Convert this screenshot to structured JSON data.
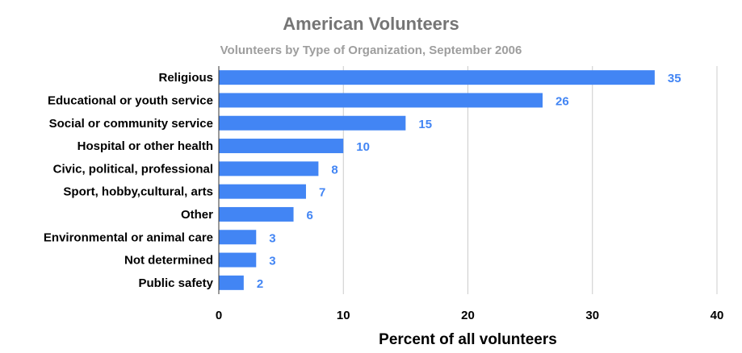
{
  "title": "American Volunteers",
  "subtitle": "Volunteers by Type of Organization, September 2006",
  "colors": {
    "bar": "#4285f4",
    "value_label": "#4285f4",
    "grid": "#cccccc",
    "axis": "#333333",
    "title": "#757575",
    "subtitle": "#9e9e9e"
  },
  "chart_data": {
    "type": "bar",
    "orientation": "horizontal",
    "title": "American Volunteers",
    "subtitle": "Volunteers by Type of Organization, September 2006",
    "xlabel": "Percent of all volunteers",
    "ylabel": "",
    "categories": [
      "Religious",
      "Educational or youth service",
      "Social or community service",
      "Hospital or other health",
      "Civic, political, professional",
      "Sport, hobby,cultural, arts",
      "Other",
      "Environmental or animal care",
      "Not determined",
      "Public safety"
    ],
    "values": [
      35,
      26,
      15,
      10,
      8,
      7,
      6,
      3,
      3,
      2
    ],
    "xlim": [
      0,
      40
    ],
    "xticks": [
      0,
      10,
      20,
      30,
      40
    ],
    "grid": true,
    "legend": "none",
    "data_labels": true
  }
}
